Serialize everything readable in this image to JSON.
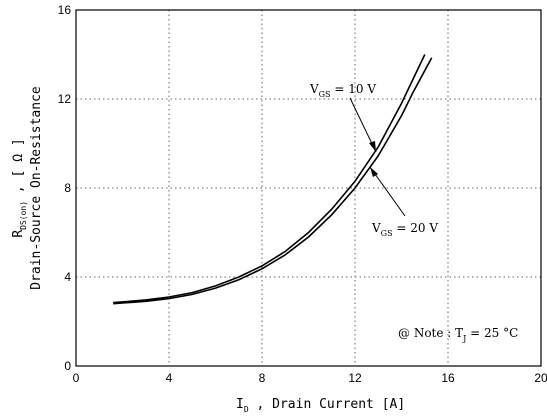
{
  "chart_data": {
    "type": "line",
    "title": "",
    "xlabel": {
      "main": "I",
      "sub": "D",
      "rest": " , Drain Current   [A]"
    },
    "ylabel": {
      "line1_main": "R",
      "line1_sub": "DS(on)",
      "line1_rest": "  , [ Ω ]",
      "line2": "Drain-Source On-Resistance"
    },
    "xlim": [
      0,
      20
    ],
    "ylim": [
      0,
      16
    ],
    "xticks": [
      0,
      4,
      8,
      12,
      16,
      20
    ],
    "yticks": [
      0,
      4,
      8,
      12,
      16
    ],
    "grid": true,
    "series": [
      {
        "name": "VGS = 10 V",
        "x": [
          1.6,
          2,
          3,
          4,
          5,
          6,
          7,
          8,
          9,
          10,
          11,
          12,
          13,
          14,
          14.5,
          15.0
        ],
        "y": [
          2.85,
          2.88,
          2.97,
          3.1,
          3.3,
          3.6,
          4.0,
          4.5,
          5.15,
          6.0,
          7.05,
          8.3,
          9.85,
          11.8,
          12.9,
          14.0
        ]
      },
      {
        "name": "VGS = 20 V",
        "x": [
          1.6,
          2,
          3,
          4,
          5,
          6,
          7,
          8,
          9,
          10,
          11,
          12,
          13,
          14,
          14.5,
          15.3
        ],
        "y": [
          2.8,
          2.83,
          2.91,
          3.03,
          3.22,
          3.5,
          3.88,
          4.37,
          5.0,
          5.8,
          6.8,
          8.0,
          9.45,
          11.25,
          12.3,
          13.85
        ]
      }
    ],
    "annotations": {
      "vgs10": {
        "main": "V",
        "sub": "GS",
        "rest": " = 10 V"
      },
      "vgs20": {
        "main": "V",
        "sub": "GS",
        "rest": " = 20 V"
      },
      "note": {
        "main": "@ Note : T",
        "sub": "J",
        "rest": " = 25 °C"
      }
    }
  }
}
